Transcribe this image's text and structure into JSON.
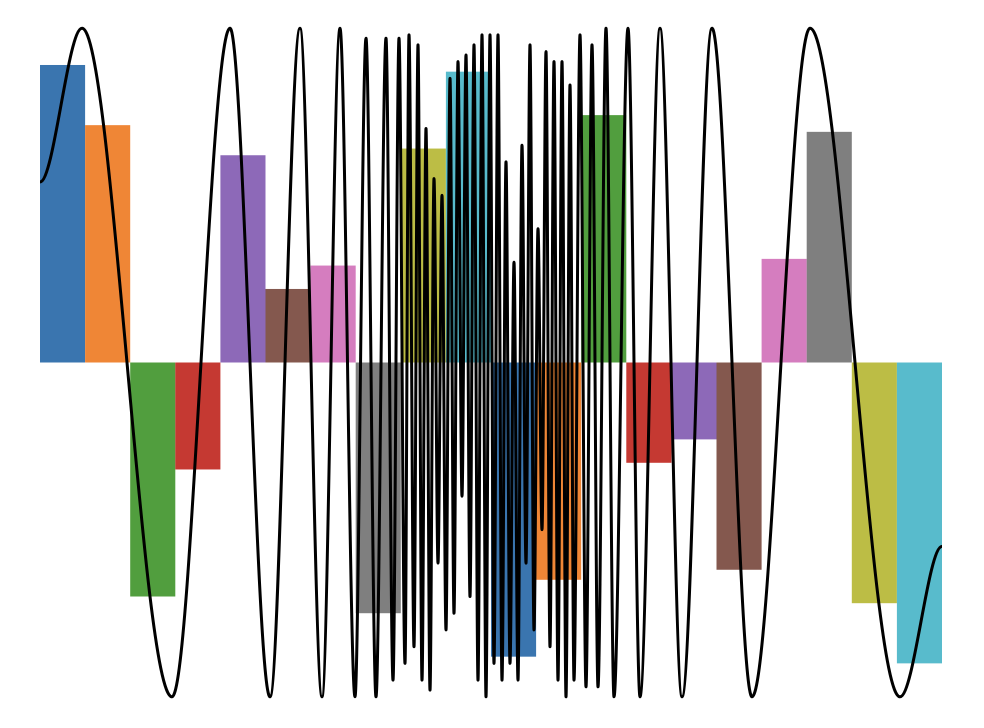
{
  "chart_data": {
    "type": "bar_line",
    "categories": [
      null,
      null,
      null,
      null,
      null,
      null,
      null,
      null,
      null,
      null,
      null,
      null,
      null,
      null,
      null,
      null,
      null,
      null,
      null,
      null
    ],
    "values": [
      0.89,
      0.71,
      -0.7,
      -0.32,
      0.62,
      0.22,
      0.29,
      -0.75,
      0.64,
      0.87,
      -0.88,
      -0.65,
      0.74,
      -0.3,
      -0.23,
      -0.62,
      0.31,
      0.69,
      -0.72,
      -0.9
    ],
    "colors": [
      "#3a75af",
      "#ef8636",
      "#519e3e",
      "#c53932",
      "#8d69b8",
      "#84584e",
      "#d57dbf",
      "#7f7f7f",
      "#bcbd45",
      "#58bbcc",
      "#3a75af",
      "#ef8636",
      "#519e3e",
      "#c53932",
      "#8d69b8",
      "#84584e",
      "#d57dbf",
      "#7f7f7f",
      "#bcbd45",
      "#58bbcc"
    ],
    "line": {
      "color": "#000000",
      "x": [
        0,
        42,
        132,
        190,
        230,
        260,
        282,
        300,
        315,
        326,
        336,
        346,
        353,
        359,
        365,
        369,
        374,
        378,
        382,
        386,
        390,
        394,
        398,
        402,
        406,
        410,
        414,
        418,
        422,
        426,
        430,
        434,
        438,
        442,
        446,
        450,
        454,
        458,
        462,
        466,
        470,
        474,
        478,
        482,
        486,
        490,
        494,
        498,
        502,
        506,
        510,
        514,
        518,
        522,
        526,
        530,
        534,
        540,
        546,
        552,
        558,
        566,
        574,
        588,
        600,
        620,
        642,
        672,
        712,
        770,
        860,
        902
      ],
      "values": [
        0.54,
        1,
        -1,
        1,
        -1,
        1,
        -1,
        1,
        -1,
        0.97,
        -1,
        0.97,
        -0.95,
        0.97,
        -0.9,
        0.98,
        -0.85,
        0.95,
        -0.95,
        0.7,
        -0.98,
        0.55,
        -0.6,
        0.5,
        -0.8,
        0.85,
        -0.75,
        0.9,
        -0.4,
        0.92,
        -0.7,
        0.95,
        -0.95,
        0.98,
        -1,
        0.98,
        -0.9,
        0.98,
        -0.95,
        0.6,
        -0.9,
        0.3,
        -0.95,
        0.65,
        -0.6,
        0.95,
        -0.8,
        0.4,
        -0.5,
        0.93,
        -0.85,
        0.9,
        -0.95,
        0.9,
        -1,
        0.83,
        -0.95,
        0.98,
        -0.97,
        0.95,
        -0.97,
        1,
        -1,
        1,
        -1,
        1,
        -1,
        1,
        -1,
        1,
        -1,
        -0.55
      ]
    },
    "xlim": [
      0,
      902
    ],
    "ylim": [
      -1.05,
      1.05
    ]
  }
}
